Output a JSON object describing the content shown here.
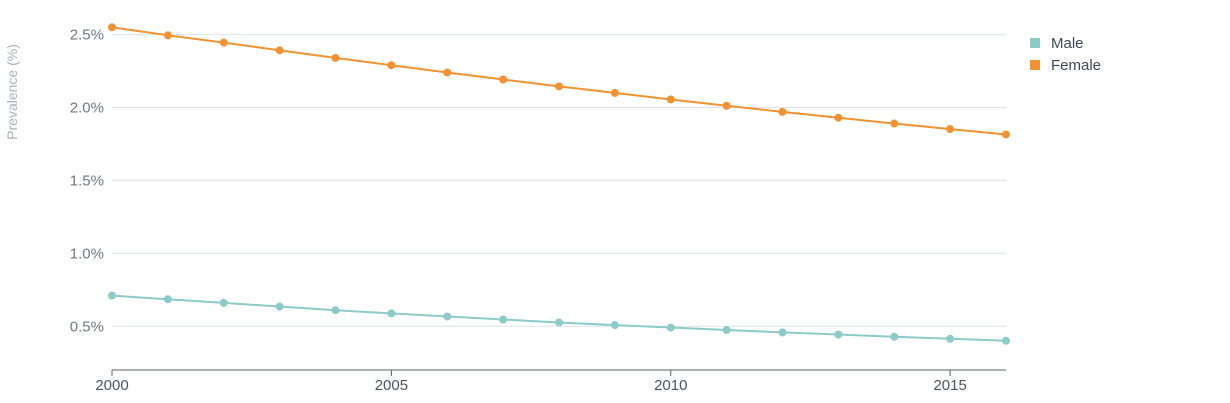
{
  "chart_data": {
    "type": "line",
    "ylabel": "Prevalence (%)",
    "x": [
      2000,
      2001,
      2002,
      2003,
      2004,
      2005,
      2006,
      2007,
      2008,
      2009,
      2010,
      2011,
      2012,
      2013,
      2014,
      2015,
      2016
    ],
    "xlim": [
      2000,
      2016
    ],
    "xticks": [
      2000,
      2005,
      2010,
      2015
    ],
    "xtick_labels": [
      "2000",
      "2005",
      "2010",
      "2015"
    ],
    "ylim": [
      0.2,
      2.6
    ],
    "yticks": [
      0.5,
      1.0,
      1.5,
      2.0,
      2.5
    ],
    "ytick_labels": [
      "0.5%",
      "1.0%",
      "1.5%",
      "2.0%",
      "2.5%"
    ],
    "grid": true,
    "legend_position": "top-right",
    "series": [
      {
        "name": "Male",
        "color": "#8ccbc8",
        "values": [
          0.71,
          0.685,
          0.66,
          0.635,
          0.61,
          0.588,
          0.567,
          0.546,
          0.526,
          0.508,
          0.491,
          0.474,
          0.458,
          0.443,
          0.428,
          0.414,
          0.401
        ]
      },
      {
        "name": "Female",
        "color": "#f39233",
        "values": [
          2.55,
          2.495,
          2.445,
          2.392,
          2.34,
          2.29,
          2.24,
          2.192,
          2.145,
          2.1,
          2.055,
          2.012,
          1.97,
          1.93,
          1.89,
          1.852,
          1.815
        ]
      }
    ]
  }
}
